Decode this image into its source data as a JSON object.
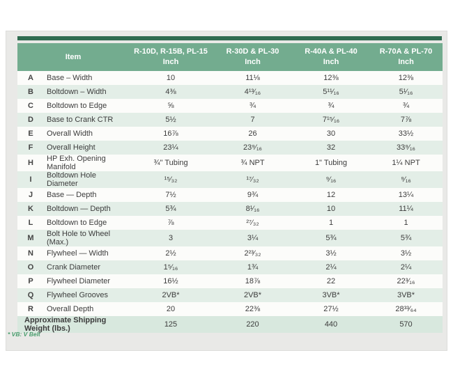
{
  "colors": {
    "accent_bar": "#2f6b50",
    "header_green": "#73ac8f",
    "stripe_green": "#e3eee7",
    "shipping_row_green": "#d8e8de",
    "panel_gray": "#e9e9e7",
    "note_green": "#4a9e6e"
  },
  "table": {
    "header": {
      "item": "Item",
      "columns": [
        {
          "line1": "R-10D, R-15B, PL-15",
          "line2": "Inch"
        },
        {
          "line1": "R-30D & PL-30",
          "line2": "Inch"
        },
        {
          "line1": "R-40A & PL-40",
          "line2": "Inch"
        },
        {
          "line1": "R-70A & PL-70",
          "line2": "Inch"
        }
      ]
    },
    "rows": [
      {
        "letter": "A",
        "item": "Base – Width",
        "values": [
          "10",
          "11⅛",
          "12⅜",
          "12⅜"
        ]
      },
      {
        "letter": "B",
        "item": "Boltdown – Width",
        "values": [
          "4⅜",
          "4¹³⁄₁₆",
          "5¹¹⁄₁₆",
          "5¹⁄₁₆"
        ]
      },
      {
        "letter": "C",
        "item": "Boltdown to Edge",
        "values": [
          "⅝",
          "¾",
          "¾",
          "¾"
        ]
      },
      {
        "letter": "D",
        "item": "Base to Crank CTR",
        "values": [
          "5½",
          "7",
          "7¹⁵⁄₁₆",
          "7⅞"
        ]
      },
      {
        "letter": "E",
        "item": "Overall Width",
        "values": [
          "16⅞",
          "26",
          "30",
          "33½"
        ]
      },
      {
        "letter": "F",
        "item": "Overall Height",
        "values": [
          "23¼",
          "23⁹⁄₁₆",
          "32",
          "33⁹⁄₁₆"
        ]
      },
      {
        "letter": "H",
        "item": "HP Exh. Opening Manifold",
        "values": [
          "¾\" Tubing",
          "¾ NPT",
          "1\" Tubing",
          "1¼ NPT"
        ]
      },
      {
        "letter": "I",
        "item": "Boltdown Hole Diameter",
        "values": [
          "¹⁵⁄₃₂",
          "¹⁷⁄₃₂",
          "⁹⁄₁₆",
          "⁹⁄₁₆"
        ]
      },
      {
        "letter": "J",
        "item": "Base — Depth",
        "values": [
          "7½",
          "9¾",
          "12",
          "13¼"
        ]
      },
      {
        "letter": "K",
        "item": "Boltdown — Depth",
        "values": [
          "5¾",
          "8¹⁄₁₆",
          "10",
          "11¼"
        ]
      },
      {
        "letter": "L",
        "item": "Boltdown to Edge",
        "values": [
          "⅞",
          "²⁷⁄₃₂",
          "1",
          "1"
        ]
      },
      {
        "letter": "M",
        "item": "Bolt Hole to Wheel (Max.)",
        "values": [
          "3",
          "3¼",
          "5¾",
          "5¾"
        ]
      },
      {
        "letter": "N",
        "item": "Flywheel — Width",
        "values": [
          "2½",
          "2²³⁄₃₂",
          "3½",
          "3½"
        ]
      },
      {
        "letter": "O",
        "item": "Crank Diameter",
        "values": [
          "1⁵⁄₁₆",
          "1¾",
          "2¼",
          "2¼"
        ]
      },
      {
        "letter": "P",
        "item": "Flywheel Diameter",
        "values": [
          "16½",
          "18⅞",
          "22",
          "22³⁄₁₆"
        ]
      },
      {
        "letter": "Q",
        "item": "Flywheel Grooves",
        "values": [
          "2VB*",
          "2VB*",
          "3VB*",
          "3VB*"
        ]
      },
      {
        "letter": "R",
        "item": "Overall Depth",
        "values": [
          "20",
          "22⅜",
          "27½",
          "28³³⁄₆₄"
        ]
      }
    ],
    "footer_row": {
      "label": "Approximate Shipping Weight (lbs.)",
      "values": [
        "125",
        "220",
        "440",
        "570"
      ]
    }
  },
  "note": "* VB: V Belt"
}
